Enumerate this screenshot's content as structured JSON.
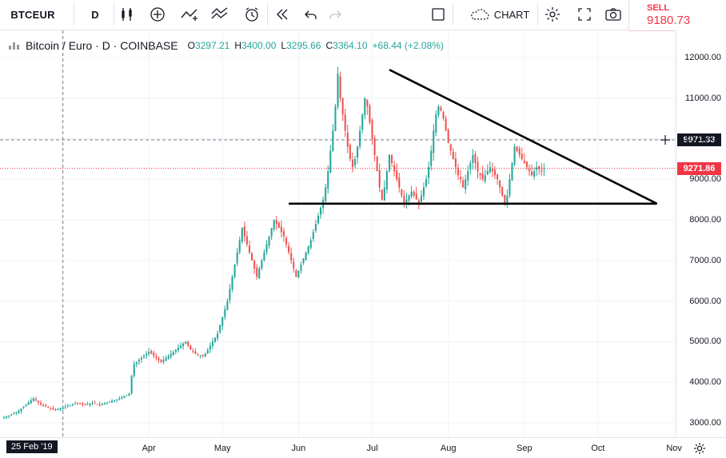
{
  "toolbar": {
    "symbol": "BTCEUR",
    "interval": "D",
    "chart_label": "CHART",
    "sell_label": "SELL",
    "sell_price": "9180.73"
  },
  "legend": {
    "title": "Bitcoin / Euro · D · COINBASE",
    "o_key": "O",
    "o_val": "3297.21",
    "h_key": "H",
    "h_val": "3400.00",
    "l_key": "L",
    "l_val": "3295.66",
    "c_key": "C",
    "c_val": "3364.10",
    "change": "+68.44 (+2.08%)"
  },
  "colors": {
    "up": "#26a69a",
    "down": "#ef5350",
    "trend": "#000000",
    "price_line": "#f23645",
    "cursor_line": "#787b86"
  },
  "cursor_date": "25 Feb '19",
  "crosshair_price": "9971.33",
  "last_price": "9271.86",
  "chart_data": {
    "type": "candlestick",
    "ylim": [
      2600,
      12600
    ],
    "y_ticks": [
      "3000.00",
      "4000.00",
      "5000.00",
      "6000.00",
      "7000.00",
      "8000.00",
      "9000.00",
      "10000.00",
      "11000.00",
      "12000.00"
    ],
    "x_ticks": [
      "Apr",
      "May",
      "Jun",
      "Jul",
      "Aug",
      "Sep",
      "Oct",
      "Nov"
    ],
    "start_date": "2019-02-01",
    "closes": [
      3140,
      3160,
      3180,
      3200,
      3230,
      3260,
      3300,
      3350,
      3400,
      3450,
      3500,
      3550,
      3600,
      3550,
      3500,
      3450,
      3420,
      3400,
      3380,
      3350,
      3330,
      3320,
      3340,
      3360,
      3380,
      3400,
      3420,
      3440,
      3460,
      3480,
      3470,
      3460,
      3450,
      3440,
      3460,
      3480,
      3500,
      3480,
      3460,
      3450,
      3460,
      3480,
      3500,
      3520,
      3540,
      3560,
      3580,
      3600,
      3620,
      3650,
      3680,
      3720,
      4150,
      4450,
      4500,
      4550,
      4600,
      4650,
      4700,
      4750,
      4700,
      4650,
      4600,
      4550,
      4500,
      4550,
      4600,
      4650,
      4700,
      4750,
      4800,
      4850,
      4900,
      4950,
      5000,
      4900,
      4800,
      4750,
      4700,
      4680,
      4660,
      4650,
      4700,
      4800,
      4900,
      5000,
      5100,
      5200,
      5400,
      5600,
      5800,
      6000,
      6300,
      6600,
      6900,
      7200,
      7500,
      7800,
      7600,
      7400,
      7200,
      7000,
      6800,
      6600,
      6800,
      7000,
      7200,
      7400,
      7600,
      7800,
      8000,
      7900,
      7800,
      7700,
      7600,
      7400,
      7200,
      7000,
      6800,
      6600,
      6750,
      6900,
      7050,
      7200,
      7350,
      7500,
      7700,
      7900,
      8100,
      8300,
      8500,
      8800,
      9200,
      9700,
      10200,
      10800,
      11600,
      11000,
      10600,
      10200,
      9800,
      9500,
      9300,
      9500,
      9800,
      10200,
      10600,
      11000,
      10800,
      10400,
      10000,
      9600,
      9200,
      8800,
      8500,
      8800,
      9200,
      9600,
      9400,
      9200,
      9000,
      8800,
      8600,
      8400,
      8500,
      8600,
      8700,
      8600,
      8500,
      8400,
      8600,
      8800,
      9000,
      9300,
      9700,
      10200,
      10600,
      10800,
      10700,
      10500,
      10200,
      9900,
      9700,
      9500,
      9300,
      9100,
      9000,
      8800,
      9000,
      9200,
      9400,
      9600,
      9400,
      9200,
      9100,
      9000,
      9100,
      9200,
      9300,
      9200,
      9100,
      9000,
      8800,
      8600,
      8400,
      8600,
      9000,
      9400,
      9800,
      9700,
      9600,
      9500,
      9400,
      9300,
      9200,
      9100,
      9200,
      9300,
      9250,
      9200,
      9271.86
    ]
  },
  "trendlines": [
    {
      "from": [
        "2019-07-08",
        11700
      ],
      "to": [
        "2019-10-25",
        8400
      ]
    },
    {
      "from": [
        "2019-05-28",
        8400
      ],
      "to": [
        "2019-10-25",
        8400
      ]
    }
  ]
}
